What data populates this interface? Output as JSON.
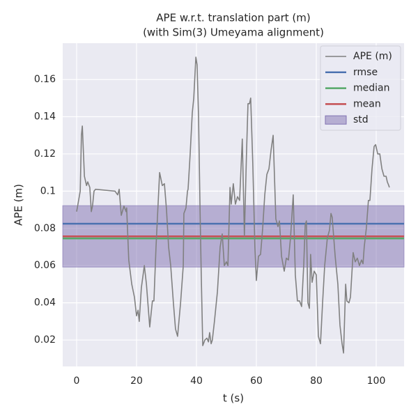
{
  "chart_data": {
    "type": "line",
    "title": "APE w.r.t. translation part (m)",
    "subtitle": "(with Sim(3) Umeyama alignment)",
    "x_label": "t (s)",
    "y_label": "APE (m)",
    "xlim": [
      -4.65,
      109.3
    ],
    "ylim": [
      0.0058,
      0.1795
    ],
    "xticks": [
      0,
      20,
      40,
      60,
      80,
      100
    ],
    "yticks": [
      0.02,
      0.04,
      0.06,
      0.08,
      0.1,
      0.12,
      0.14,
      0.16
    ],
    "grid": true,
    "legend": "upper right",
    "series": [
      {
        "name": "APE (m)",
        "color": "#808080",
        "x": [
          0,
          1.2,
          1.6,
          1.9,
          2.6,
          3.3,
          3.7,
          4.4,
          4.9,
          5.3,
          5.8,
          6.3,
          12.8,
          13.7,
          14.2,
          14.9,
          15.8,
          16.5,
          16.7,
          17.4,
          18.4,
          19.3,
          20,
          20.5,
          20.9,
          21.6,
          22.6,
          23.3,
          24.4,
          25.3,
          25.8,
          26.5,
          27.7,
          28.6,
          29.3,
          30,
          30.7,
          31.4,
          32.3,
          33,
          33.7,
          34.7,
          35.6,
          35.8,
          36.5,
          37,
          37.2,
          37.9,
          38.6,
          39.1,
          39.8,
          40.2,
          40.7,
          41.2,
          41.6,
          42.1,
          42.8,
          43.5,
          44,
          44.4,
          44.9,
          45.3,
          46,
          47,
          47.9,
          48.6,
          49.3,
          50,
          50.5,
          51.2,
          51.6,
          52.3,
          53,
          53.7,
          54.4,
          55.3,
          56,
          56.7,
          57.2,
          57.7,
          58.1,
          58.8,
          59.5,
          60,
          60.7,
          61.4,
          62.1,
          62.8,
          63.5,
          64.2,
          64.9,
          65.6,
          66,
          66.5,
          67.2,
          67.7,
          68.4,
          69.3,
          70,
          70.7,
          71.4,
          72.3,
          73,
          73.7,
          74.4,
          75.1,
          75.8,
          76.3,
          76.7,
          77.2,
          77.7,
          78.1,
          78.6,
          79.3,
          80,
          80.7,
          81.4,
          82.1,
          82.8,
          83.7,
          84.4,
          84.9,
          85.3,
          86.3,
          87.2,
          87.9,
          88.6,
          89.1,
          89.8,
          90.2,
          90.9,
          91.4,
          92.3,
          93,
          93.7,
          94.4,
          95.1,
          95.6,
          96,
          96.7,
          97.4,
          97.9,
          98.6,
          99.3,
          99.8,
          100.5,
          101.2,
          101.9,
          102.6,
          103.3,
          103.7,
          104.2,
          104.4
        ],
        "values": [
          0.089,
          0.1,
          0.13,
          0.135,
          0.108,
          0.103,
          0.105,
          0.102,
          0.089,
          0.092,
          0.1,
          0.101,
          0.1,
          0.098,
          0.101,
          0.087,
          0.092,
          0.089,
          0.091,
          0.063,
          0.05,
          0.043,
          0.033,
          0.036,
          0.03,
          0.048,
          0.06,
          0.05,
          0.027,
          0.041,
          0.041,
          0.07,
          0.11,
          0.103,
          0.104,
          0.09,
          0.07,
          0.06,
          0.04,
          0.026,
          0.022,
          0.04,
          0.06,
          0.088,
          0.091,
          0.1,
          0.101,
          0.12,
          0.142,
          0.15,
          0.172,
          0.168,
          0.14,
          0.09,
          0.055,
          0.017,
          0.02,
          0.021,
          0.019,
          0.024,
          0.018,
          0.02,
          0.03,
          0.046,
          0.07,
          0.077,
          0.06,
          0.062,
          0.06,
          0.102,
          0.093,
          0.104,
          0.093,
          0.097,
          0.095,
          0.128,
          0.076,
          0.12,
          0.147,
          0.147,
          0.15,
          0.115,
          0.07,
          0.052,
          0.065,
          0.066,
          0.08,
          0.098,
          0.109,
          0.112,
          0.122,
          0.13,
          0.11,
          0.085,
          0.081,
          0.084,
          0.065,
          0.057,
          0.064,
          0.063,
          0.075,
          0.098,
          0.055,
          0.041,
          0.041,
          0.038,
          0.06,
          0.082,
          0.084,
          0.04,
          0.037,
          0.066,
          0.051,
          0.057,
          0.055,
          0.022,
          0.018,
          0.04,
          0.06,
          0.075,
          0.079,
          0.088,
          0.086,
          0.065,
          0.05,
          0.028,
          0.018,
          0.013,
          0.05,
          0.041,
          0.04,
          0.043,
          0.067,
          0.062,
          0.064,
          0.06,
          0.063,
          0.061,
          0.07,
          0.08,
          0.095,
          0.095,
          0.112,
          0.124,
          0.125,
          0.12,
          0.12,
          0.112,
          0.108,
          0.108,
          0.105,
          0.103,
          0.102
        ]
      }
    ],
    "hlines": [
      {
        "name": "rmse",
        "color": "#4c72b0",
        "value": 0.0825
      },
      {
        "name": "median",
        "color": "#55a868",
        "value": 0.0746
      },
      {
        "name": "mean",
        "color": "#c44e52",
        "value": 0.0757
      }
    ],
    "band": {
      "name": "std",
      "color": "#8172b2",
      "value": 0.0165
    }
  }
}
